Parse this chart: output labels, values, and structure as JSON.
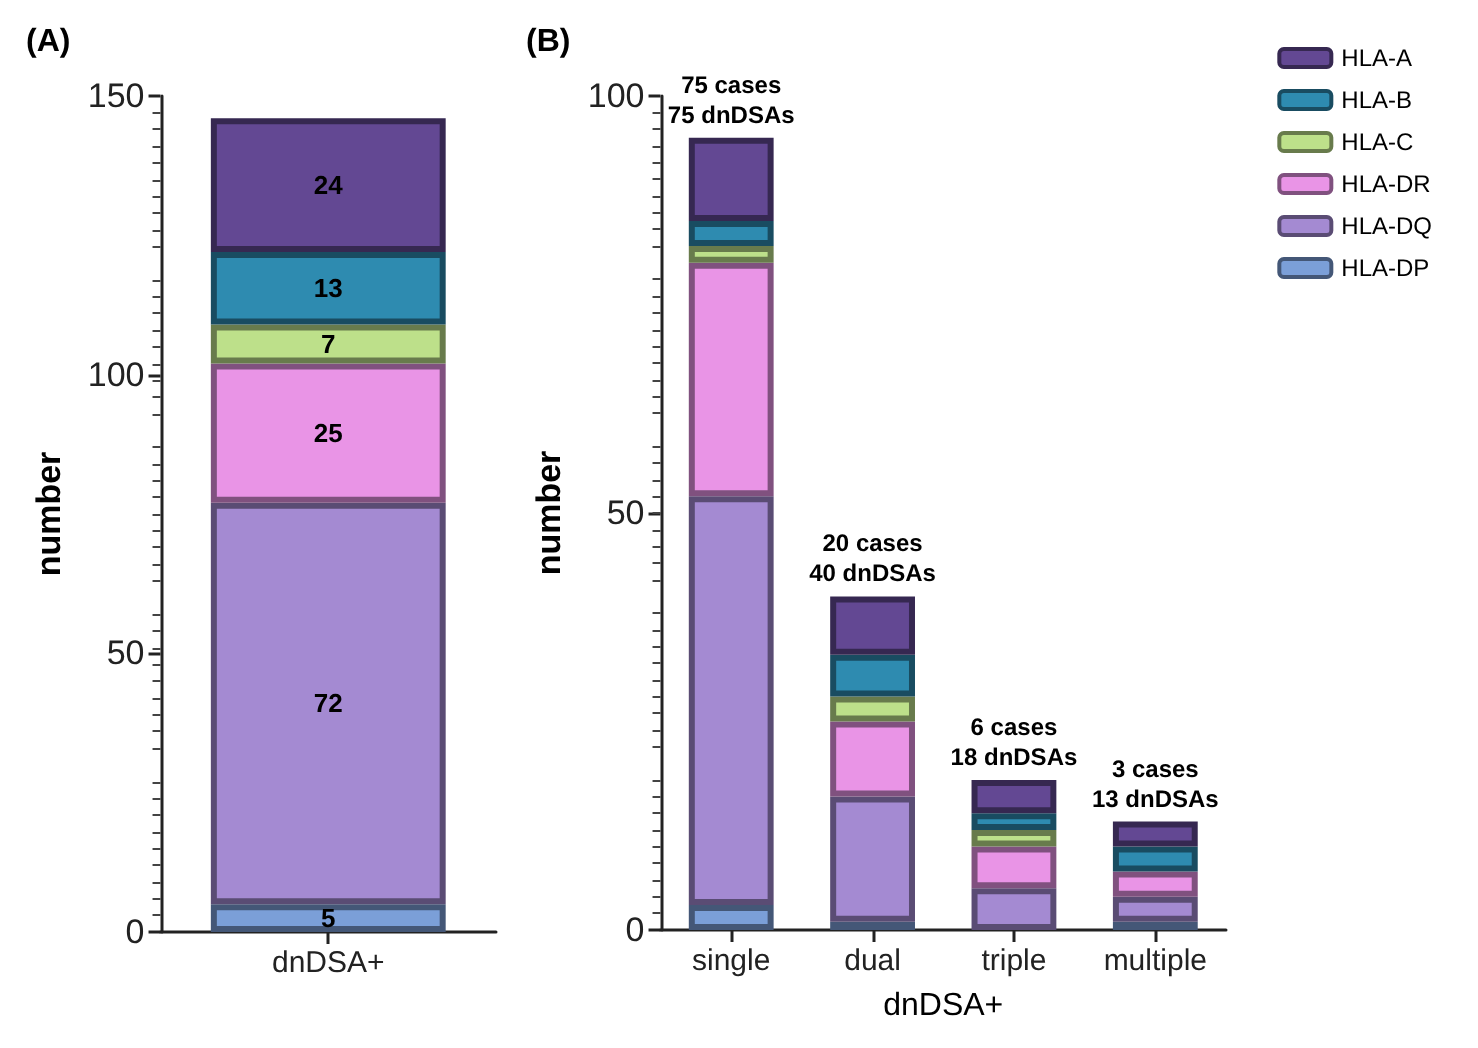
{
  "chart_data": [
    {
      "type": "bar",
      "title": "(A)",
      "ylabel": "number",
      "categories": [
        "dnDSA+"
      ],
      "stacked": true,
      "data_labels": true,
      "ylim": [
        0,
        150
      ],
      "yticks": [
        0,
        50,
        100,
        150
      ],
      "grid": false,
      "legend": false,
      "series": [
        {
          "color": "#7b9fd8",
          "values": [
            5
          ]
        },
        {
          "color": "#a48ad2",
          "values": [
            72
          ]
        },
        {
          "color": "#e994e6",
          "values": [
            25
          ]
        },
        {
          "color": "#bde08a",
          "values": [
            7
          ]
        },
        {
          "color": "#2e8bb0",
          "values": [
            13
          ]
        },
        {
          "color": "#634893",
          "values": [
            24
          ]
        }
      ]
    },
    {
      "type": "bar",
      "title": "(B)",
      "ylabel": "number",
      "xlabel": "dnDSA+",
      "categories": [
        "single",
        "dual",
        "triple",
        "multiple"
      ],
      "stacked": true,
      "ylim": [
        0,
        100
      ],
      "yticks": [
        0,
        50,
        100
      ],
      "grid": false,
      "legend": "top right",
      "series": [
        {
          "name": "HLA-DP",
          "color": "#7b9fd8",
          "values": [
            3,
            1,
            0,
            1
          ]
        },
        {
          "name": "HLA-DQ",
          "color": "#a48ad2",
          "values": [
            49,
            15,
            5,
            3
          ]
        },
        {
          "name": "HLA-DR",
          "color": "#e994e6",
          "values": [
            28,
            9,
            5,
            3
          ]
        },
        {
          "name": "HLA-C",
          "color": "#bde08a",
          "values": [
            2,
            3,
            2,
            0
          ]
        },
        {
          "name": "HLA-B",
          "color": "#2e8bb0",
          "values": [
            3,
            5,
            2,
            3
          ]
        },
        {
          "name": "HLA-A",
          "color": "#634893",
          "values": [
            10,
            7,
            4,
            3
          ]
        }
      ],
      "annotations": [
        {
          "text": "75 cases\n75 dnDSAs",
          "x": "single",
          "y": 95
        },
        {
          "text": "20 cases\n40 dnDSAs",
          "x": "dual",
          "y": 40
        },
        {
          "text": "6 cases\n18 dnDSAs",
          "x": "triple",
          "y": 18
        },
        {
          "text": "3 cases\n13 dnDSAs",
          "x": "multiple",
          "y": 13
        }
      ]
    }
  ]
}
